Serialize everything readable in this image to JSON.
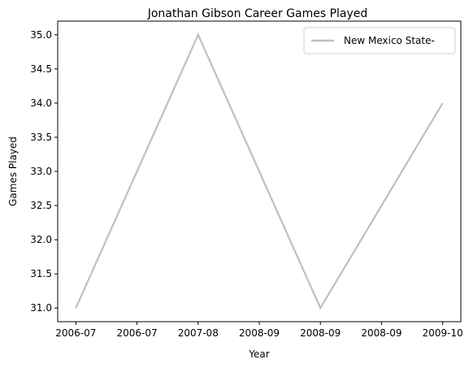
{
  "chart_data": {
    "type": "line",
    "title": "Jonathan Gibson  Career Games Played",
    "xlabel": "Year",
    "ylabel": "Games Played",
    "x": [
      "2006-07",
      "2007-08",
      "2008-09",
      "2009-10"
    ],
    "series": [
      {
        "name": "New Mexico State-",
        "values": [
          31,
          35,
          31,
          34
        ],
        "color": "#bfbfbf"
      }
    ],
    "x_tick_labels": [
      "2006-07",
      "2006-07",
      "2007-08",
      "2008-09",
      "2008-09",
      "2008-09",
      "2009-10"
    ],
    "ylim": [
      30.8,
      35.2
    ],
    "y_ticks": [
      31.0,
      31.5,
      32.0,
      32.5,
      33.0,
      33.5,
      34.0,
      34.5,
      35.0
    ],
    "y_tick_labels": [
      "31.0",
      "31.5",
      "32.0",
      "32.5",
      "33.0",
      "33.5",
      "34.0",
      "34.5",
      "35.0"
    ],
    "grid": false,
    "legend_position": "top-right"
  }
}
